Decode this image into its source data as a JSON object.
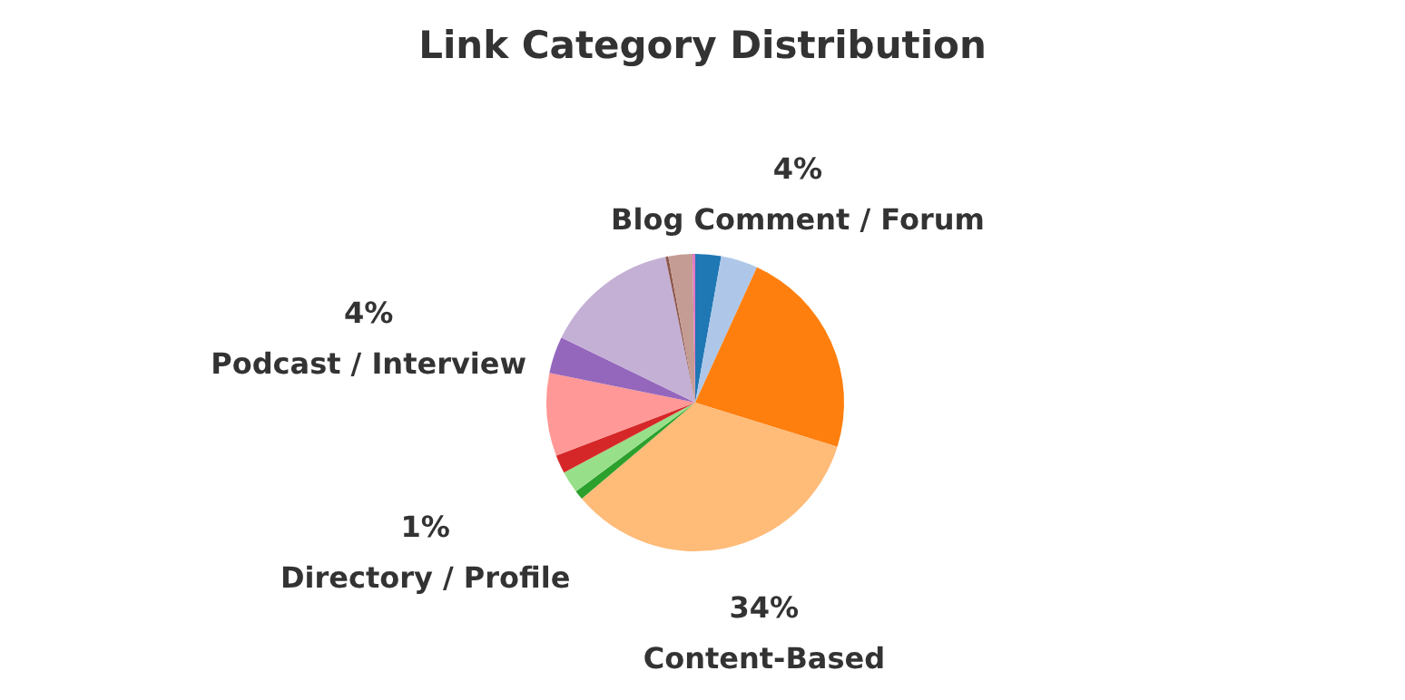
{
  "chart_data": {
    "type": "pie",
    "title": "Link Category Distribution",
    "categories": [
      null,
      "Blog Comment / Forum",
      null,
      "Content-Based",
      "Directory / Profile",
      null,
      null,
      null,
      "Podcast / Interview",
      null,
      null,
      null,
      null
    ],
    "values": [
      2.8,
      4,
      23,
      34,
      1,
      2.4,
      2,
      9,
      4,
      14.6,
      0.3,
      2.6,
      0.3
    ],
    "value_labels": [
      null,
      "4%",
      null,
      "34%",
      "1%",
      null,
      null,
      null,
      "4%",
      null,
      null,
      null,
      null
    ],
    "colors": [
      "#1f77b4",
      "#aec7e8",
      "#ff7f0e",
      "#ffbb78",
      "#2ca02c",
      "#98df8a",
      "#d62728",
      "#ff9896",
      "#9467bd",
      "#c5b0d5",
      "#8c564b",
      "#c49c94",
      "#e377c2"
    ],
    "legend": false
  }
}
